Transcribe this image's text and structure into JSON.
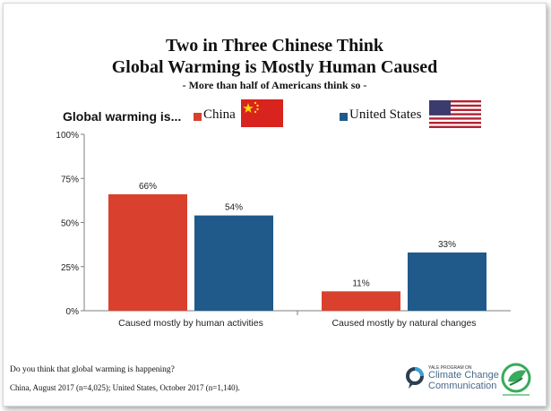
{
  "header": {
    "title_line1": "Two in Three Chinese Think",
    "title_line2": "Global Warming is Mostly Human Caused",
    "subtitle": "- More than half of Americans think so -",
    "lead_label": "Global warming is..."
  },
  "legend": [
    {
      "name": "China",
      "color": "#d9412e",
      "icon": "china-flag-icon"
    },
    {
      "name": "United States",
      "color": "#1f5a8a",
      "icon": "us-flag-icon"
    }
  ],
  "chart_data": {
    "type": "bar",
    "categories": [
      "Caused mostly by human activities",
      "Caused mostly by natural changes"
    ],
    "series": [
      {
        "name": "China",
        "values": [
          66,
          11
        ],
        "labels": [
          "66%",
          "11%"
        ],
        "color": "#d9412e"
      },
      {
        "name": "United States",
        "values": [
          54,
          33
        ],
        "labels": [
          "54%",
          "33%"
        ],
        "color": "#1f5a8a"
      }
    ],
    "y_ticks": [
      "0%",
      "25%",
      "50%",
      "75%",
      "100%"
    ],
    "ylim": [
      0,
      100
    ],
    "grid": false,
    "legend_position": "top"
  },
  "footer": {
    "question": "Do you think that global warming is happening?",
    "sample": "China, August 2017 (n=4,025); United States, October 2017 (n=1,140)."
  },
  "logo": {
    "small_caps": "YALE PROGRAM ON",
    "line1": "Climate Change",
    "line2": "Communication"
  }
}
